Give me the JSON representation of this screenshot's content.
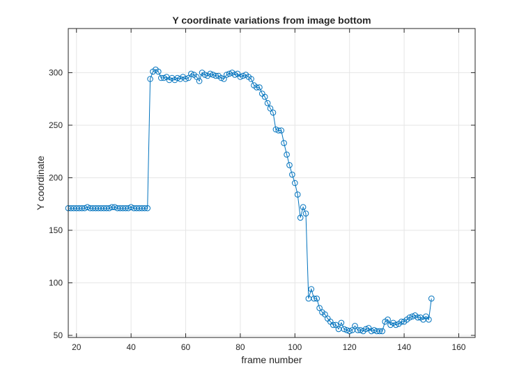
{
  "chart_data": {
    "type": "line",
    "title": "Y coordinate variations from image bottom",
    "xlabel": "frame number",
    "ylabel": "Y coordinate",
    "xlim": [
      17,
      166
    ],
    "ylim": [
      48,
      342
    ],
    "xticks": [
      20,
      40,
      60,
      80,
      100,
      120,
      140,
      160
    ],
    "yticks": [
      50,
      100,
      150,
      200,
      250,
      300
    ],
    "grid": true,
    "legend": false,
    "marker": "circle",
    "color": "#0072BD",
    "series": [
      {
        "x": [
          17,
          18,
          19,
          20,
          21,
          22,
          23,
          24,
          25,
          26,
          27,
          28,
          29,
          30,
          31,
          32,
          33,
          34,
          35,
          36,
          37,
          38,
          39,
          40,
          41,
          42,
          43,
          44,
          45,
          46,
          47,
          48,
          49,
          50,
          51,
          52,
          53,
          54,
          55,
          56,
          57,
          58,
          59,
          60,
          61,
          62,
          63,
          64,
          65,
          66,
          67,
          68,
          69,
          70,
          71,
          72,
          73,
          74,
          75,
          76,
          77,
          78,
          79,
          80,
          81,
          82,
          83,
          84,
          85,
          86,
          87,
          88,
          89,
          90,
          91,
          92,
          93,
          94,
          95,
          96,
          97,
          98,
          99,
          100,
          101,
          102,
          103,
          104,
          105,
          106,
          107,
          108,
          109,
          110,
          111,
          112,
          113,
          114,
          115,
          116,
          117,
          118,
          119,
          120,
          121,
          122,
          123,
          124,
          125,
          126,
          127,
          128,
          129,
          130,
          131,
          132,
          133,
          134,
          135,
          136,
          137,
          138,
          139,
          140,
          141,
          142,
          143,
          144,
          145,
          146,
          147,
          148,
          149,
          150
        ],
        "y": [
          171,
          171,
          171,
          171,
          171,
          171,
          171,
          172,
          171,
          171,
          171,
          171,
          171,
          171,
          171,
          171,
          172,
          172,
          171,
          171,
          171,
          171,
          171,
          172,
          171,
          171,
          171,
          171,
          171,
          171,
          294,
          301,
          303,
          301,
          295,
          295,
          296,
          293,
          295,
          293,
          295,
          294,
          296,
          294,
          295,
          299,
          298,
          296,
          292,
          300,
          298,
          297,
          299,
          298,
          297,
          297,
          295,
          294,
          298,
          299,
          300,
          298,
          299,
          296,
          297,
          298,
          296,
          294,
          288,
          286,
          286,
          280,
          277,
          271,
          266,
          262,
          246,
          245,
          245,
          233,
          222,
          212,
          203,
          195,
          184,
          162,
          172,
          166,
          85,
          94,
          85,
          85,
          76,
          72,
          70,
          66,
          63,
          60,
          60,
          56,
          62,
          56,
          55,
          54,
          55,
          59,
          55,
          55,
          54,
          56,
          57,
          54,
          55,
          54,
          54,
          54,
          63,
          65,
          60,
          62,
          60,
          61,
          63,
          63,
          65,
          67,
          68,
          69,
          67,
          67,
          65,
          68,
          65,
          85
        ]
      }
    ]
  }
}
